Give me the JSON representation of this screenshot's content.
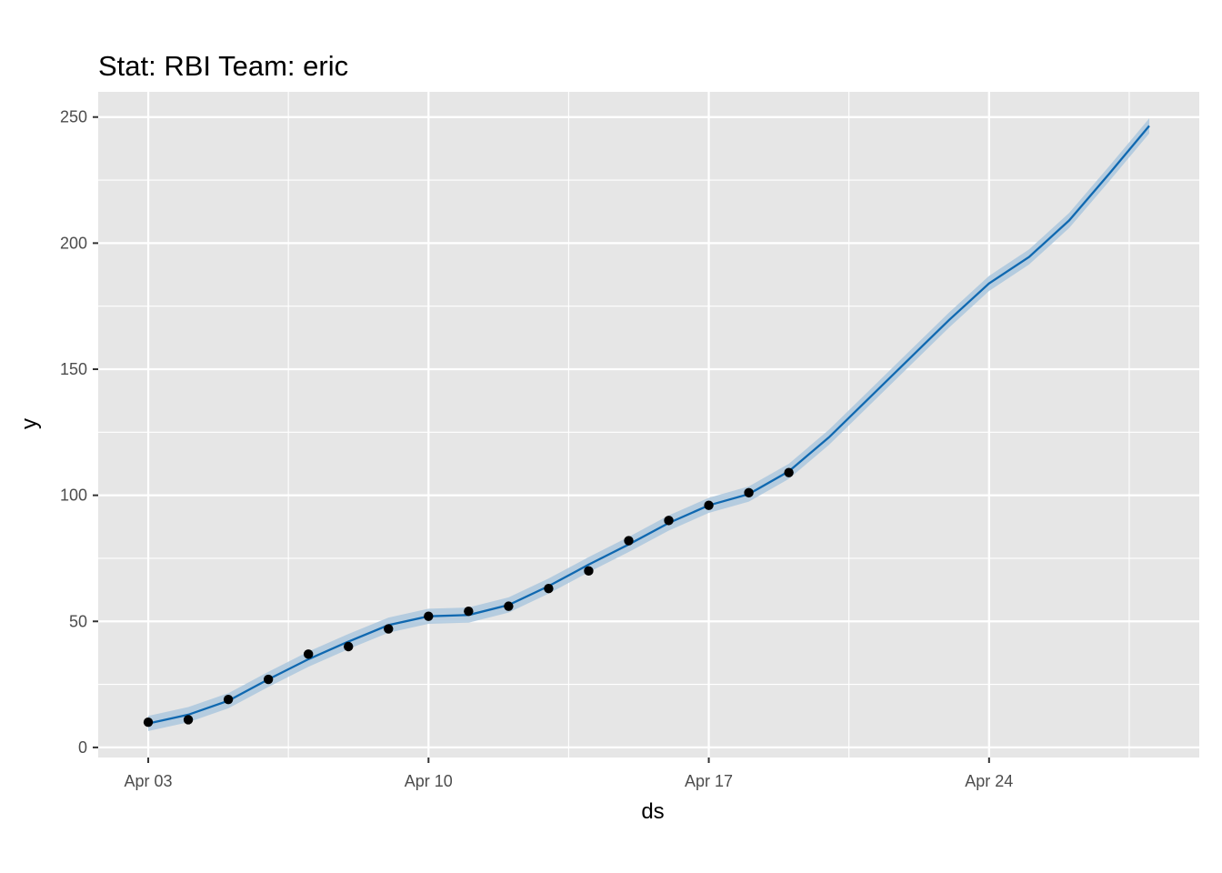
{
  "chart_data": {
    "type": "line",
    "title": "Stat: RBI Team: eric",
    "xlabel": "ds",
    "ylabel": "y",
    "x_range": [
      "2021-04-01 18:00",
      "2021-04-29 06:00"
    ],
    "ylim": [
      -4,
      260
    ],
    "x_ticks": [
      {
        "date": "2021-04-03",
        "label": "Apr 03"
      },
      {
        "date": "2021-04-10",
        "label": "Apr 10"
      },
      {
        "date": "2021-04-17",
        "label": "Apr 17"
      },
      {
        "date": "2021-04-24",
        "label": "Apr 24"
      }
    ],
    "x_minor_ticks": [
      "2021-04-06 12:00",
      "2021-04-13 12:00",
      "2021-04-20 12:00",
      "2021-04-27 12:00"
    ],
    "y_ticks": [
      0,
      50,
      100,
      150,
      200,
      250
    ],
    "y_minor_ticks": [
      25,
      75,
      125,
      175,
      225
    ],
    "grid": true,
    "colors": {
      "panel": "#e6e6e6",
      "grid": "#ffffff",
      "forecast_line": "#0f68b0",
      "interval_band": "#a9c6dd",
      "points": "#000000"
    },
    "series": [
      {
        "type": "scatter",
        "x": [
          "2021-04-03",
          "2021-04-04",
          "2021-04-05",
          "2021-04-06",
          "2021-04-07",
          "2021-04-08",
          "2021-04-09",
          "2021-04-10",
          "2021-04-11",
          "2021-04-12",
          "2021-04-13",
          "2021-04-14",
          "2021-04-15",
          "2021-04-16",
          "2021-04-17",
          "2021-04-18",
          "2021-04-19"
        ],
        "values": [
          10,
          11,
          19,
          27,
          37,
          40,
          47,
          52,
          54,
          56,
          63,
          70,
          82,
          90,
          96,
          101,
          109
        ]
      },
      {
        "type": "line",
        "x": [
          "2021-04-03",
          "2021-04-04",
          "2021-04-05",
          "2021-04-06",
          "2021-04-07",
          "2021-04-08",
          "2021-04-09",
          "2021-04-10",
          "2021-04-11",
          "2021-04-12",
          "2021-04-13",
          "2021-04-14",
          "2021-04-15",
          "2021-04-16",
          "2021-04-17",
          "2021-04-18",
          "2021-04-19",
          "2021-04-20",
          "2021-04-21",
          "2021-04-22",
          "2021-04-23",
          "2021-04-24",
          "2021-04-25",
          "2021-04-26",
          "2021-04-27",
          "2021-04-28"
        ],
        "values": [
          9.5,
          13,
          18.5,
          27,
          35,
          42,
          48.5,
          52,
          52.5,
          56.5,
          64,
          72.5,
          80.5,
          89,
          96,
          100.5,
          109.5,
          123,
          138.5,
          154,
          169.5,
          184,
          194.5,
          209,
          227.5,
          246.5
        ],
        "band": 3
      }
    ]
  }
}
